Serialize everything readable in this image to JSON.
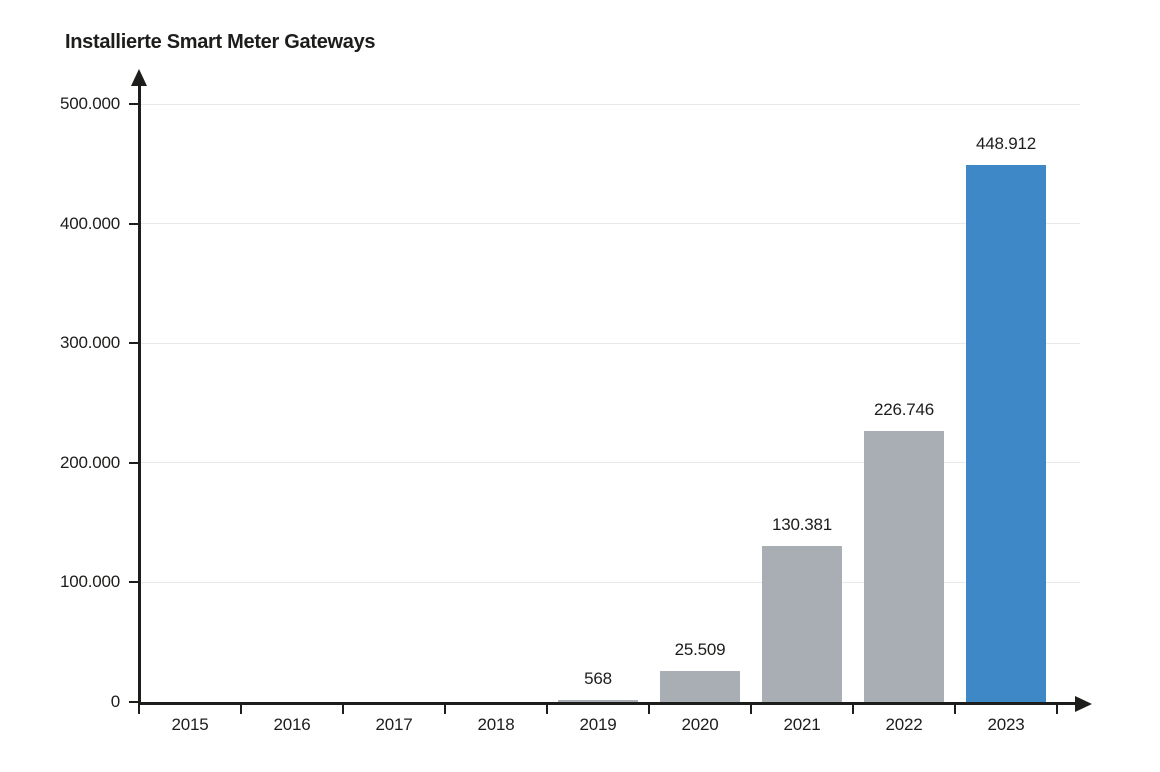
{
  "title": "Installierte Smart Meter Gateways",
  "colors": {
    "background": "#ffffff",
    "bar_default": "#a8aeb4",
    "bar_highlight": "#3e88c8",
    "axis": "#1d1d1b",
    "gridline": "#e6e9eb",
    "text": "#1d1d1b"
  },
  "chart_data": {
    "type": "bar",
    "title": "Installierte Smart Meter Gateways",
    "categories": [
      "2015",
      "2016",
      "2017",
      "2018",
      "2019",
      "2020",
      "2021",
      "2022",
      "2023"
    ],
    "values": [
      0,
      0,
      0,
      0,
      568,
      25509,
      130381,
      226746,
      448912
    ],
    "value_labels": [
      "",
      "",
      "",
      "",
      "568",
      "25.509",
      "130.381",
      "226.746",
      "448.912"
    ],
    "highlighted_category": "2023",
    "xlabel": "",
    "ylabel": "",
    "ylim": [
      0,
      500000
    ],
    "y_ticks": [
      0,
      100000,
      200000,
      300000,
      400000,
      500000
    ],
    "y_tick_labels": [
      "0",
      "100.000",
      "200.000",
      "300.000",
      "400.000",
      "500.000"
    ],
    "grid": "horizontal",
    "legend": "none",
    "axis_arrows": true
  }
}
